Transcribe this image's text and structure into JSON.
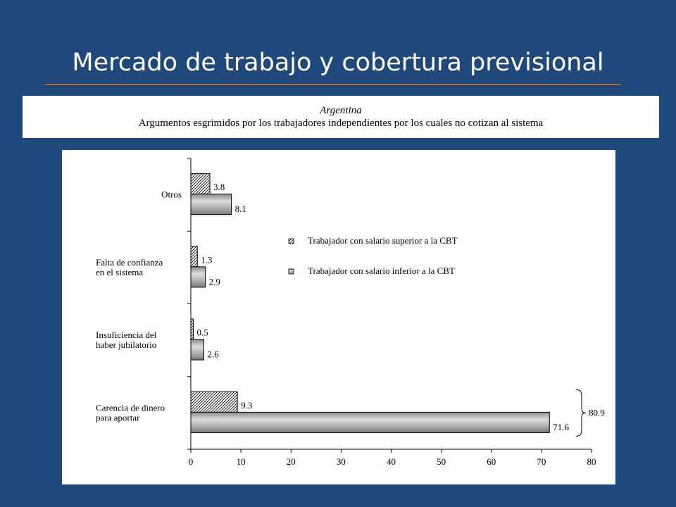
{
  "slide": {
    "title": "Mercado de trabajo y cobertura previsional"
  },
  "chart_data": {
    "type": "bar",
    "orientation": "horizontal",
    "title": "Argentina",
    "subtitle": "Argumentos esgrimidos por los trabajadores independientes por los cuales no cotizan al sistema",
    "xlabel": "",
    "ylabel": "",
    "xlim": [
      0,
      80
    ],
    "x_ticks": [
      0,
      10,
      20,
      30,
      40,
      50,
      60,
      70,
      80
    ],
    "grid": false,
    "legend_position": "right",
    "categories": [
      [
        "Otros"
      ],
      [
        "Falta de confianza",
        "en el sistema"
      ],
      [
        "Insuficiencia del",
        "haber jubilatorio"
      ],
      [
        "Carencia de dinero",
        "para aportar"
      ]
    ],
    "series": [
      {
        "name": "Trabajador con salario superior a la CBT",
        "values": [
          3.8,
          1.3,
          0.5,
          9.3
        ],
        "labels": [
          "3.8",
          "1.3",
          "0.5",
          "9.3"
        ]
      },
      {
        "name": "Trabajador con salario inferior a la CBT",
        "values": [
          8.1,
          2.9,
          2.6,
          71.6
        ],
        "labels": [
          "8.1",
          "2.9",
          "2.6",
          "71.6"
        ]
      }
    ],
    "annotations": [
      {
        "category_index": 3,
        "text": "80.9",
        "type": "brace-total"
      }
    ],
    "colors": {
      "hatch_stroke": "#000000",
      "bar_fill": "#b4b4b4",
      "bar_highlight": "#dcdcdc"
    }
  }
}
